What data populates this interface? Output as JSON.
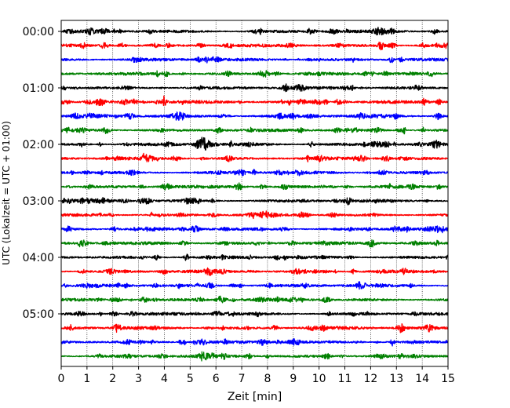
{
  "chart_data": {
    "type": "line",
    "title": "",
    "xlabel": "Zeit  [min]",
    "ylabel": "UTC (Lokalzeit = UTC + 01:00)",
    "xlim": [
      0,
      15
    ],
    "x_ticks": [
      "0",
      "1",
      "2",
      "3",
      "4",
      "5",
      "6",
      "7",
      "8",
      "9",
      "10",
      "11",
      "12",
      "13",
      "14",
      "15"
    ],
    "y_ticks": [
      "00:00",
      "01:00",
      "02:00",
      "03:00",
      "04:00",
      "05:00"
    ],
    "grid": "vertical dotted at each minute",
    "trace_colors": [
      "#000000",
      "#ff0000",
      "#0000ff",
      "#008000"
    ],
    "traces": [
      {
        "start": "00:00",
        "color": "#000000"
      },
      {
        "start": "00:15",
        "color": "#ff0000"
      },
      {
        "start": "00:30",
        "color": "#0000ff"
      },
      {
        "start": "00:45",
        "color": "#008000"
      },
      {
        "start": "01:00",
        "color": "#000000"
      },
      {
        "start": "01:15",
        "color": "#ff0000",
        "event_minute": 4.0
      },
      {
        "start": "01:30",
        "color": "#0000ff"
      },
      {
        "start": "01:45",
        "color": "#008000"
      },
      {
        "start": "02:00",
        "color": "#000000"
      },
      {
        "start": "02:15",
        "color": "#ff0000"
      },
      {
        "start": "02:30",
        "color": "#0000ff"
      },
      {
        "start": "02:45",
        "color": "#008000"
      },
      {
        "start": "03:00",
        "color": "#000000"
      },
      {
        "start": "03:15",
        "color": "#ff0000"
      },
      {
        "start": "03:30",
        "color": "#0000ff"
      },
      {
        "start": "03:45",
        "color": "#008000"
      },
      {
        "start": "04:00",
        "color": "#000000"
      },
      {
        "start": "04:15",
        "color": "#ff0000"
      },
      {
        "start": "04:30",
        "color": "#0000ff"
      },
      {
        "start": "04:45",
        "color": "#008000"
      },
      {
        "start": "05:00",
        "color": "#000000"
      },
      {
        "start": "05:15",
        "color": "#ff0000"
      },
      {
        "start": "05:30",
        "color": "#0000ff"
      },
      {
        "start": "05:45",
        "color": "#008000"
      }
    ]
  }
}
